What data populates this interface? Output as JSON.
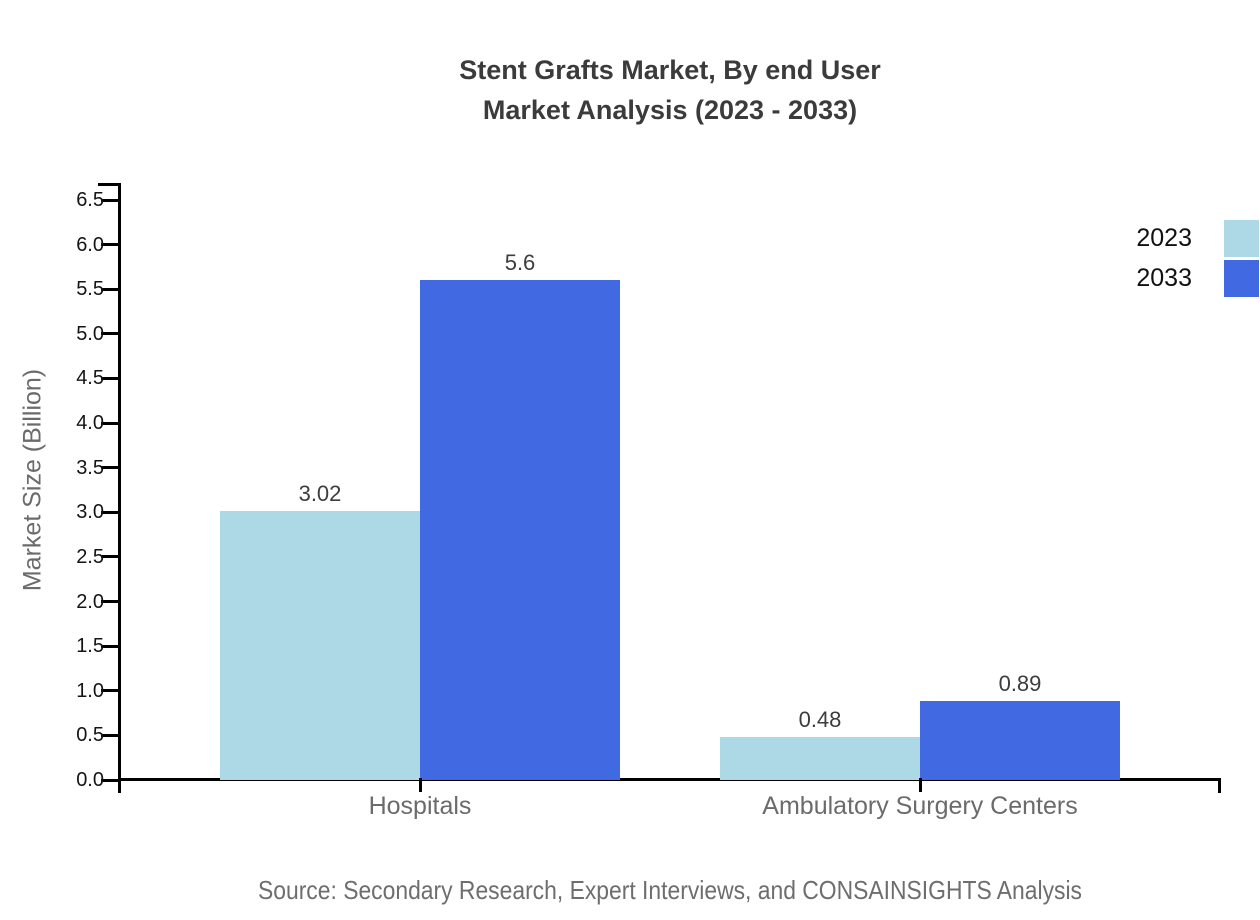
{
  "title": {
    "line1": "Stent Grafts Market, By end User",
    "line2": "Market Analysis (2023 - 2033)"
  },
  "source": "Source: Secondary Research, Expert Interviews, and CONSAINSIGHTS Analysis",
  "colors": {
    "series_2023": "#add8e6",
    "series_2033": "#4169e1",
    "axis": "#000000",
    "title_text": "#3b3b3b",
    "muted_text": "#6b6b6b",
    "tick_text": "#141414",
    "bar_label_text": "#3d3d3d"
  },
  "legend": {
    "items": [
      {
        "label": "2023",
        "color": "#add8e6"
      },
      {
        "label": "2033",
        "color": "#4169e1"
      }
    ],
    "position": "top-right"
  },
  "chart_data": {
    "type": "bar",
    "title": "Stent Grafts Market, By end User Market Analysis (2023 - 2033)",
    "categories": [
      "Hospitals",
      "Ambulatory Surgery Centers"
    ],
    "series": [
      {
        "name": "2023",
        "values": [
          3.02,
          0.48
        ],
        "color": "#add8e6"
      },
      {
        "name": "2033",
        "values": [
          5.6,
          0.89
        ],
        "color": "#4169e1"
      }
    ],
    "xlabel": "",
    "ylabel": "Market Size (Billion)",
    "ylim": [
      0,
      6.5
    ],
    "ytick_step": 0.5,
    "grid": false,
    "legend_position": "top-right",
    "bar_value_labels": [
      "3.02",
      "5.6",
      "0.48",
      "0.89"
    ]
  }
}
